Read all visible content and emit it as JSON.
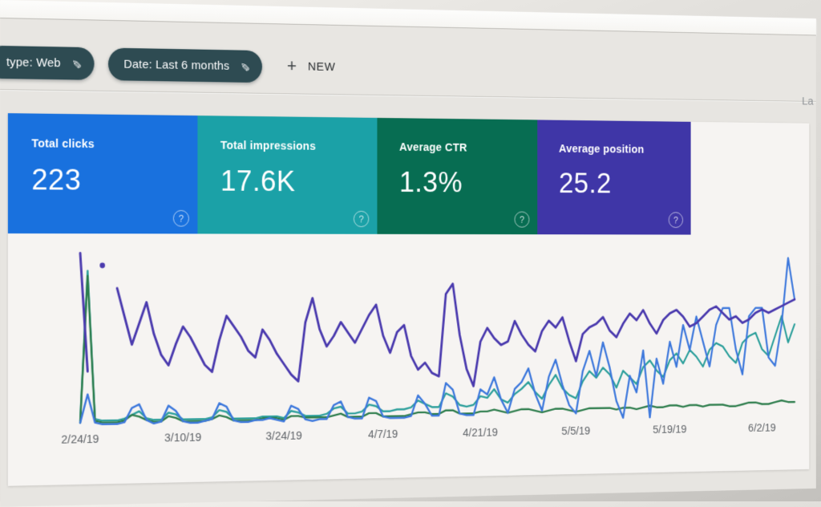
{
  "filters": {
    "type_chip": "type: Web",
    "date_chip": "Date: Last 6 months",
    "pencil_icon": "✎",
    "plus_icon": "+",
    "new_button": "NEW",
    "top_right_partial": "La"
  },
  "cards": [
    {
      "label": "Total clicks",
      "value": "223",
      "color": "#1671e3",
      "help_icon": "?"
    },
    {
      "label": "Total impressions",
      "value": "17.6K",
      "color": "#17a2a8",
      "help_icon": "?"
    },
    {
      "label": "Average CTR",
      "value": "1.3%",
      "color": "#046e52",
      "help_icon": "?"
    },
    {
      "label": "Average position",
      "value": "25.2",
      "color": "#3f36ab",
      "help_icon": "?"
    }
  ],
  "chart_data": {
    "type": "line",
    "title": "",
    "xlabel": "",
    "ylabel": "",
    "grid": false,
    "legend": "none",
    "ylim": [
      0,
      100
    ],
    "x_unit": "day",
    "days_total": 104,
    "tick_day_indices": [
      0,
      14,
      28,
      42,
      56,
      70,
      84,
      98
    ],
    "x_tick_labels": [
      "2/24/19",
      "3/10/19",
      "3/24/19",
      "4/7/19",
      "4/21/19",
      "5/5/19",
      "5/19/19",
      "6/2/19"
    ],
    "axis_label_color": "#5f6368",
    "series": [
      {
        "name": "impressions",
        "color": "#28a09c",
        "width": 2.4,
        "values": [
          3,
          88,
          4,
          3,
          3,
          3,
          4,
          6,
          8,
          4,
          3,
          3,
          7,
          6,
          3,
          3,
          3,
          3,
          4,
          8,
          7,
          3,
          3,
          3,
          3,
          4,
          4,
          4,
          3,
          7,
          6,
          4,
          4,
          4,
          5,
          8,
          9,
          5,
          5,
          6,
          10,
          9,
          6,
          6,
          7,
          7,
          8,
          12,
          10,
          8,
          8,
          16,
          14,
          9,
          8,
          9,
          14,
          13,
          18,
          12,
          10,
          15,
          18,
          22,
          16,
          12,
          20,
          26,
          18,
          14,
          12,
          22,
          28,
          24,
          30,
          26,
          18,
          28,
          24,
          20,
          30,
          34,
          28,
          24,
          34,
          38,
          32,
          40,
          36,
          30,
          40,
          44,
          42,
          36,
          32,
          44,
          48,
          50,
          40,
          36,
          48,
          60,
          44,
          55
        ]
      },
      {
        "name": "ctr",
        "color": "#2a7d4a",
        "width": 2.4,
        "values": [
          2,
          85,
          3,
          2,
          2,
          2,
          3,
          6,
          5,
          3,
          2,
          2,
          5,
          4,
          2,
          2,
          2,
          2,
          3,
          5,
          4,
          2,
          2,
          2,
          2,
          3,
          3,
          3,
          2,
          4,
          4,
          3,
          3,
          3,
          3,
          4,
          5,
          3,
          3,
          3,
          5,
          5,
          3,
          3,
          3,
          3,
          4,
          5,
          5,
          4,
          4,
          6,
          6,
          4,
          4,
          4,
          5,
          5,
          6,
          5,
          4,
          5,
          6,
          6,
          5,
          4,
          5,
          6,
          6,
          5,
          4,
          5,
          6,
          6,
          6,
          6,
          5,
          6,
          6,
          5,
          6,
          7,
          6,
          6,
          7,
          7,
          6,
          7,
          7,
          6,
          7,
          7,
          7,
          6,
          6,
          7,
          8,
          8,
          7,
          7,
          8,
          9,
          8,
          8
        ]
      },
      {
        "name": "clicks",
        "color": "#3b78e0",
        "width": 2.5,
        "values": [
          2,
          18,
          2,
          1,
          1,
          1,
          2,
          10,
          12,
          3,
          1,
          2,
          11,
          8,
          2,
          1,
          1,
          2,
          3,
          12,
          10,
          2,
          1,
          1,
          2,
          2,
          3,
          2,
          1,
          10,
          8,
          2,
          1,
          2,
          2,
          10,
          12,
          3,
          2,
          2,
          14,
          12,
          3,
          2,
          2,
          2,
          3,
          15,
          10,
          3,
          3,
          22,
          18,
          4,
          3,
          3,
          18,
          15,
          25,
          12,
          4,
          18,
          22,
          30,
          15,
          5,
          25,
          35,
          20,
          8,
          3,
          28,
          40,
          25,
          45,
          30,
          10,
          0,
          25,
          15,
          40,
          0,
          35,
          20,
          45,
          30,
          55,
          40,
          60,
          45,
          30,
          55,
          65,
          65,
          40,
          25,
          60,
          65,
          65,
          35,
          30,
          55,
          95,
          70
        ]
      },
      {
        "name": "position",
        "color": "#4a3ab2",
        "width": 3,
        "values": [
          98,
          31,
          null,
          91,
          null,
          78,
          62,
          46,
          58,
          70,
          52,
          40,
          34,
          46,
          56,
          50,
          42,
          34,
          30,
          48,
          62,
          56,
          50,
          42,
          38,
          54,
          48,
          40,
          34,
          28,
          24,
          58,
          72,
          54,
          44,
          50,
          58,
          52,
          46,
          54,
          62,
          68,
          50,
          40,
          52,
          56,
          38,
          30,
          34,
          28,
          26,
          74,
          80,
          50,
          30,
          20,
          46,
          54,
          48,
          44,
          46,
          58,
          50,
          44,
          40,
          52,
          58,
          54,
          60,
          46,
          34,
          50,
          54,
          56,
          60,
          52,
          48,
          56,
          62,
          58,
          64,
          56,
          50,
          58,
          62,
          64,
          60,
          54,
          56,
          60,
          64,
          66,
          62,
          58,
          60,
          56,
          58,
          62,
          64,
          62,
          64,
          66,
          68,
          70
        ]
      }
    ]
  }
}
